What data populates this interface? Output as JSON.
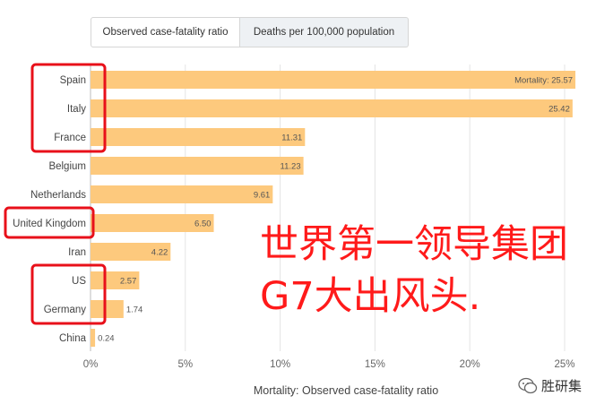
{
  "tabs": [
    {
      "label": "Observed case-fatality ratio"
    },
    {
      "label": "Deaths per 100,000 population"
    }
  ],
  "chart_data": {
    "type": "bar",
    "orientation": "horizontal",
    "categories": [
      "Spain",
      "Italy",
      "France",
      "Belgium",
      "Netherlands",
      "United Kingdom",
      "Iran",
      "US",
      "Germany",
      "China"
    ],
    "values": [
      25.57,
      25.42,
      11.31,
      11.23,
      9.61,
      6.5,
      4.22,
      2.57,
      1.74,
      0.24
    ],
    "value_labels": [
      "Mortality: 25.57",
      "25.42",
      "11.31",
      "11.23",
      "9.61",
      "6.50",
      "4.22",
      "2.57",
      "1.74",
      "0.24"
    ],
    "xticks": [
      "0%",
      "5%",
      "10%",
      "15%",
      "20%",
      "25%"
    ],
    "xtick_values": [
      0,
      5,
      10,
      15,
      20,
      25
    ],
    "xlim": [
      0,
      26.5
    ],
    "xlabel": "Mortality: Observed case-fatality ratio",
    "bar_color": "#fdc97d",
    "highlighted": [
      "Spain",
      "Italy",
      "France",
      "United Kingdom",
      "US",
      "Germany"
    ],
    "highlight_color": "#e8101a",
    "grid": true
  },
  "overlay_text": {
    "line1": "世界第一领导集团",
    "line2": "G7大出风头."
  },
  "watermark": {
    "text": "胜研集"
  }
}
